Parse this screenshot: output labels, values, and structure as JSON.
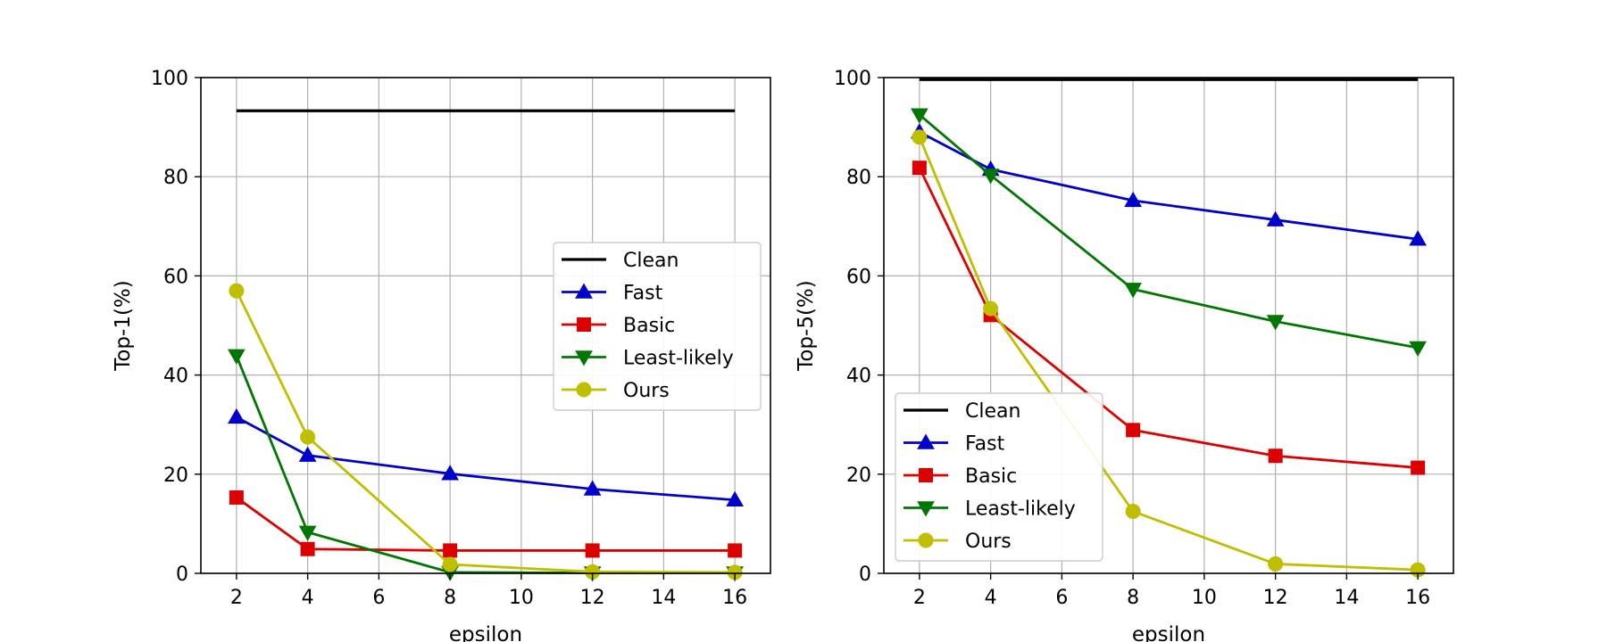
{
  "chart_data": [
    {
      "type": "line",
      "title": "",
      "xlabel": "epsilon",
      "ylabel": "Top-1(%)",
      "xlim": [
        1,
        17
      ],
      "ylim": [
        0,
        100
      ],
      "xticks": [
        2,
        4,
        6,
        8,
        10,
        12,
        14,
        16
      ],
      "yticks": [
        0,
        20,
        40,
        60,
        80,
        100
      ],
      "grid": true,
      "legend": "center-right",
      "series": [
        {
          "name": "Clean",
          "color": "#000000",
          "marker": "none",
          "x": [
            2,
            16
          ],
          "y": [
            93.3,
            93.3
          ]
        },
        {
          "name": "Fast",
          "color": "#0000cc",
          "marker": "triangle-up",
          "x": [
            2,
            4,
            8,
            12,
            16
          ],
          "y": [
            31.5,
            23.8,
            20.1,
            17.0,
            14.8
          ]
        },
        {
          "name": "Basic",
          "color": "#dd0000",
          "marker": "square",
          "x": [
            2,
            4,
            8,
            12,
            16
          ],
          "y": [
            15.3,
            4.9,
            4.6,
            4.6,
            4.6
          ]
        },
        {
          "name": "Least-likely",
          "color": "#007700",
          "marker": "triangle-down",
          "x": [
            2,
            4,
            8,
            12,
            16
          ],
          "y": [
            43.9,
            8.3,
            0.2,
            0.1,
            0.1
          ]
        },
        {
          "name": "Ours",
          "color": "#bfbf00",
          "marker": "circle",
          "x": [
            2,
            4,
            8,
            12,
            16
          ],
          "y": [
            57.0,
            27.5,
            1.8,
            0.3,
            0.2
          ]
        }
      ]
    },
    {
      "type": "line",
      "title": "",
      "xlabel": "epsilon",
      "ylabel": "Top-5(%)",
      "xlim": [
        1,
        17
      ],
      "ylim": [
        0,
        100
      ],
      "xticks": [
        2,
        4,
        6,
        8,
        10,
        12,
        14,
        16
      ],
      "yticks": [
        0,
        20,
        40,
        60,
        80,
        100
      ],
      "grid": true,
      "legend": "lower-left",
      "series": [
        {
          "name": "Clean",
          "color": "#000000",
          "marker": "none",
          "x": [
            2,
            16
          ],
          "y": [
            99.6,
            99.6
          ]
        },
        {
          "name": "Fast",
          "color": "#0000cc",
          "marker": "triangle-up",
          "x": [
            2,
            4,
            8,
            12,
            16
          ],
          "y": [
            89.0,
            81.5,
            75.2,
            71.3,
            67.4
          ]
        },
        {
          "name": "Basic",
          "color": "#dd0000",
          "marker": "square",
          "x": [
            2,
            4,
            8,
            12,
            16
          ],
          "y": [
            81.8,
            52.1,
            28.9,
            23.7,
            21.3
          ]
        },
        {
          "name": "Least-likely",
          "color": "#007700",
          "marker": "triangle-down",
          "x": [
            2,
            4,
            8,
            12,
            16
          ],
          "y": [
            92.5,
            80.3,
            57.3,
            50.8,
            45.5
          ]
        },
        {
          "name": "Ours",
          "color": "#bfbf00",
          "marker": "circle",
          "x": [
            2,
            4,
            8,
            12,
            16
          ],
          "y": [
            88.0,
            53.4,
            12.5,
            1.9,
            0.7
          ]
        }
      ]
    }
  ]
}
